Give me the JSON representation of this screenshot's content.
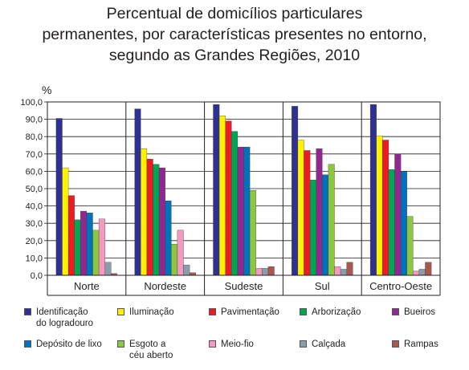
{
  "title_lines": [
    "Percentual de domicílios particulares",
    "permanentes, por características presentes no entorno,",
    "segundo as Grandes Regiões, 2010"
  ],
  "chart_data": {
    "type": "bar",
    "title": "Percentual de domicílios particulares permanentes, por características presentes no entorno, segundo as Grandes Regiões, 2010",
    "ylabel": "%",
    "xlabel": "",
    "ylim": [
      0,
      100
    ],
    "yticks": [
      "0,0",
      "10,0",
      "20,0",
      "30,0",
      "40,0",
      "50,0",
      "60,0",
      "70,0",
      "80,0",
      "90,0",
      "100,0"
    ],
    "grid": true,
    "legend_position": "bottom",
    "categories": [
      "Norte",
      "Nordeste",
      "Sudeste",
      "Sul",
      "Centro-Oeste"
    ],
    "series": [
      {
        "name": "Identificação\ndo logradouro",
        "color": "#2e3192",
        "values": [
          90.5,
          96,
          98.5,
          97.5,
          98.5
        ]
      },
      {
        "name": "Iluminação",
        "color": "#fff200",
        "values": [
          62,
          73,
          92,
          78,
          80.5
        ]
      },
      {
        "name": "Pavimentação",
        "color": "#ed1c24",
        "values": [
          46,
          67,
          89,
          72,
          78
        ]
      },
      {
        "name": "Arborização",
        "color": "#00a651",
        "values": [
          32,
          64,
          83,
          55,
          61
        ]
      },
      {
        "name": "Bueiros",
        "color": "#92278f",
        "values": [
          37,
          62,
          74,
          73,
          70
        ]
      },
      {
        "name": "Depósito de lixo",
        "color": "#0072bc",
        "values": [
          36,
          43,
          74,
          58,
          60
        ]
      },
      {
        "name": "Esgoto a\ncéu aberto",
        "color": "#8dc63f",
        "values": [
          26,
          18,
          49,
          64,
          34
        ]
      },
      {
        "name": "Meio-fio",
        "color": "#f49ac1",
        "values": [
          32.5,
          26,
          4,
          5,
          2.5
        ]
      },
      {
        "name": "Calçada",
        "color": "#8a9ea8",
        "values": [
          7.5,
          6,
          4,
          3.5,
          3.5
        ]
      },
      {
        "name": "Rampas",
        "color": "#a8584f",
        "values": [
          1,
          1.5,
          5,
          7.5,
          7.5
        ]
      }
    ]
  }
}
